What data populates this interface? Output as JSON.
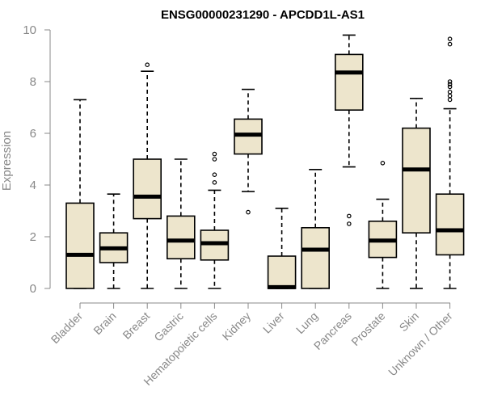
{
  "chart_data": {
    "type": "boxplot",
    "title": "ENSG00000231290 - APCDD1L-AS1",
    "ylabel": "Expression",
    "xlabel": "",
    "ylim": [
      0,
      10
    ],
    "yticks": [
      0,
      2,
      4,
      6,
      8,
      10
    ],
    "grid": false,
    "legend": "none",
    "box_fill": "#EDE5CC",
    "categories": [
      "Bladder",
      "Brain",
      "Breast",
      "Gastric",
      "Hematopoietic cells",
      "Kidney",
      "Liver",
      "Lung",
      "Pancreas",
      "Prostate",
      "Skin",
      "Unknown / Other"
    ],
    "boxes": [
      {
        "whisker_low": 0.0,
        "q1": 0.0,
        "median": 1.3,
        "q3": 3.3,
        "whisker_high": 7.3,
        "outliers": []
      },
      {
        "whisker_low": 0.0,
        "q1": 1.0,
        "median": 1.55,
        "q3": 2.15,
        "whisker_high": 3.65,
        "outliers": []
      },
      {
        "whisker_low": 0.0,
        "q1": 2.7,
        "median": 3.55,
        "q3": 5.0,
        "whisker_high": 8.4,
        "outliers": [
          8.65
        ]
      },
      {
        "whisker_low": 0.0,
        "q1": 1.15,
        "median": 1.85,
        "q3": 2.8,
        "whisker_high": 5.0,
        "outliers": []
      },
      {
        "whisker_low": 0.0,
        "q1": 1.1,
        "median": 1.75,
        "q3": 2.25,
        "whisker_high": 3.8,
        "outliers": [
          4.1,
          4.4,
          5.0,
          5.2
        ]
      },
      {
        "whisker_low": 3.75,
        "q1": 5.2,
        "median": 5.95,
        "q3": 6.55,
        "whisker_high": 7.7,
        "outliers": [
          2.95
        ]
      },
      {
        "whisker_low": 0.0,
        "q1": 0.0,
        "median": 0.05,
        "q3": 1.25,
        "whisker_high": 3.1,
        "outliers": []
      },
      {
        "whisker_low": 0.0,
        "q1": 0.0,
        "median": 1.5,
        "q3": 2.35,
        "whisker_high": 4.6,
        "outliers": []
      },
      {
        "whisker_low": 4.7,
        "q1": 6.9,
        "median": 8.35,
        "q3": 9.05,
        "whisker_high": 9.8,
        "outliers": [
          2.5,
          2.8
        ]
      },
      {
        "whisker_low": 0.0,
        "q1": 1.2,
        "median": 1.85,
        "q3": 2.6,
        "whisker_high": 3.45,
        "outliers": [
          4.85
        ]
      },
      {
        "whisker_low": 0.0,
        "q1": 2.15,
        "median": 4.6,
        "q3": 6.2,
        "whisker_high": 7.35,
        "outliers": []
      },
      {
        "whisker_low": 0.0,
        "q1": 1.3,
        "median": 2.25,
        "q3": 3.65,
        "whisker_high": 6.95,
        "outliers": [
          7.3,
          7.45,
          7.6,
          7.8,
          7.9,
          8.0,
          9.45,
          9.65
        ]
      }
    ]
  }
}
